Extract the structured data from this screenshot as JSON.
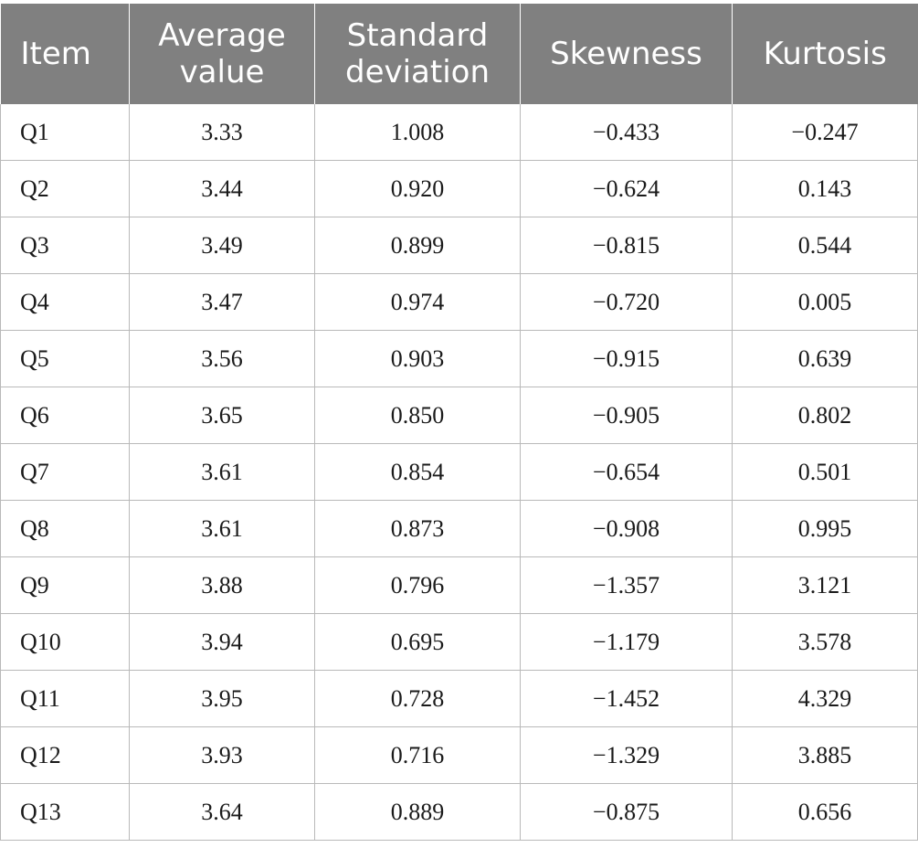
{
  "table": {
    "headers": [
      "Item",
      "Average value",
      "Standard deviation",
      "Skewness",
      "Kurtosis"
    ],
    "rows": [
      [
        "Q1",
        "3.33",
        "1.008",
        "−0.433",
        "−0.247"
      ],
      [
        "Q2",
        "3.44",
        "0.920",
        "−0.624",
        "0.143"
      ],
      [
        "Q3",
        "3.49",
        "0.899",
        "−0.815",
        "0.544"
      ],
      [
        "Q4",
        "3.47",
        "0.974",
        "−0.720",
        "0.005"
      ],
      [
        "Q5",
        "3.56",
        "0.903",
        "−0.915",
        "0.639"
      ],
      [
        "Q6",
        "3.65",
        "0.850",
        "−0.905",
        "0.802"
      ],
      [
        "Q7",
        "3.61",
        "0.854",
        "−0.654",
        "0.501"
      ],
      [
        "Q8",
        "3.61",
        "0.873",
        "−0.908",
        "0.995"
      ],
      [
        "Q9",
        "3.88",
        "0.796",
        "−1.357",
        "3.121"
      ],
      [
        "Q10",
        "3.94",
        "0.695",
        "−1.179",
        "3.578"
      ],
      [
        "Q11",
        "3.95",
        "0.728",
        "−1.452",
        "4.329"
      ],
      [
        "Q12",
        "3.93",
        "0.716",
        "−1.329",
        "3.885"
      ],
      [
        "Q13",
        "3.64",
        "0.889",
        "−0.875",
        "0.656"
      ]
    ]
  },
  "colors": {
    "header_background": "#808080",
    "header_text": "#ffffff",
    "grid_line": "#b9b9b9"
  }
}
